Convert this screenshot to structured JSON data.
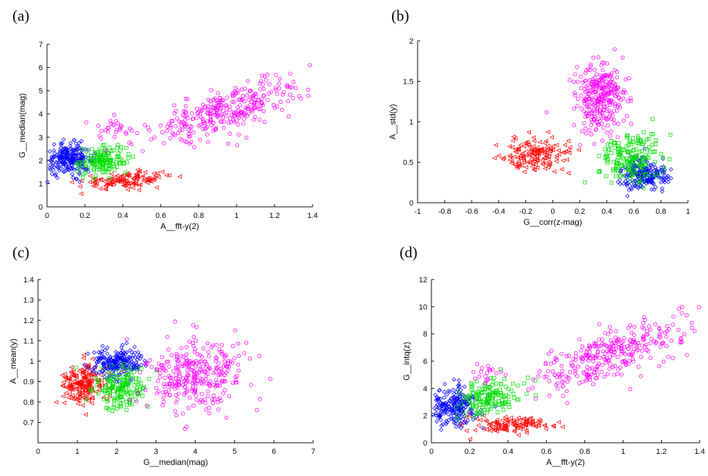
{
  "colors": {
    "red": "#ff0000",
    "blue": "#0000ff",
    "green": "#00dd00",
    "magenta": "#ff00ff"
  },
  "chart_data": [
    {
      "type": "scatter",
      "panel_label": "(a)",
      "xlabel": "A__fft-y(2)",
      "ylabel": "G__median(mag)",
      "xlim": [
        0,
        1.4
      ],
      "ylim": [
        0,
        7
      ],
      "xticks": [
        0,
        0.2,
        0.4,
        0.6,
        0.8,
        1,
        1.2,
        1.4
      ],
      "yticks": [
        0,
        1,
        2,
        3,
        4,
        5,
        6,
        7
      ],
      "xtick_labels": [
        "0",
        "0.2",
        "0.4",
        "0.6",
        "0.8",
        "1",
        "1.2",
        "1.4"
      ],
      "ytick_labels": [
        "0",
        "1",
        "2",
        "3",
        "4",
        "5",
        "6",
        "7"
      ],
      "series": [
        {
          "name": "red",
          "marker": "triangle-left",
          "color": "red",
          "clusters": [
            {
              "cx": 0.42,
              "cy": 1.15,
              "sx": 0.12,
              "sy": 0.18,
              "n": 120,
              "rho": 0.3
            }
          ]
        },
        {
          "name": "blue",
          "marker": "diamond",
          "color": "blue",
          "clusters": [
            {
              "cx": 0.12,
              "cy": 2.05,
              "sx": 0.06,
              "sy": 0.32,
              "n": 220,
              "rho": 0.1
            }
          ]
        },
        {
          "name": "green",
          "marker": "square",
          "color": "green",
          "clusters": [
            {
              "cx": 0.3,
              "cy": 2.0,
              "sx": 0.06,
              "sy": 0.3,
              "n": 140,
              "rho": 0.1
            }
          ]
        },
        {
          "name": "magenta",
          "marker": "circle",
          "color": "magenta",
          "clusters": [
            {
              "cx": 0.95,
              "cy": 4.2,
              "sx": 0.2,
              "sy": 0.7,
              "n": 320,
              "rho": 0.7
            },
            {
              "cx": 0.32,
              "cy": 3.3,
              "sx": 0.06,
              "sy": 0.25,
              "n": 25,
              "rho": 0
            }
          ]
        }
      ]
    },
    {
      "type": "scatter",
      "panel_label": "(b)",
      "xlabel": "G__corr(z-mag)",
      "ylabel": "A__std(y)",
      "xlim": [
        -1,
        1
      ],
      "ylim": [
        0,
        2
      ],
      "xticks": [
        -1,
        -0.8,
        -0.6,
        -0.4,
        -0.2,
        0,
        0.2,
        0.4,
        0.6,
        0.8,
        1
      ],
      "yticks": [
        0,
        0.5,
        1,
        1.5,
        2
      ],
      "xtick_labels": [
        "-1",
        "-0.8",
        "-0.6",
        "-0.4",
        "-0.2",
        "0",
        "0.2",
        "0.4",
        "0.6",
        "0.8",
        "1"
      ],
      "ytick_labels": [
        "0",
        "0.5",
        "1",
        "1.5",
        "2"
      ],
      "series": [
        {
          "name": "red",
          "marker": "triangle-left",
          "color": "red",
          "clusters": [
            {
              "cx": -0.12,
              "cy": 0.58,
              "sx": 0.13,
              "sy": 0.11,
              "n": 150,
              "rho": 0
            }
          ]
        },
        {
          "name": "blue",
          "marker": "diamond",
          "color": "blue",
          "clusters": [
            {
              "cx": 0.68,
              "cy": 0.35,
              "sx": 0.08,
              "sy": 0.1,
              "n": 220,
              "rho": 0
            }
          ]
        },
        {
          "name": "green",
          "marker": "square",
          "color": "green",
          "clusters": [
            {
              "cx": 0.58,
              "cy": 0.55,
              "sx": 0.12,
              "sy": 0.15,
              "n": 180,
              "rho": 0
            }
          ]
        },
        {
          "name": "magenta",
          "marker": "circle",
          "color": "magenta",
          "clusters": [
            {
              "cx": 0.35,
              "cy": 1.3,
              "sx": 0.09,
              "sy": 0.2,
              "n": 300,
              "rho": 0
            }
          ]
        }
      ]
    },
    {
      "type": "scatter",
      "panel_label": "(c)",
      "xlabel": "G__median(mag)",
      "ylabel": "A__mean(y)",
      "xlim": [
        0,
        7
      ],
      "ylim": [
        0.6,
        1.4
      ],
      "xticks": [
        0,
        1,
        2,
        3,
        4,
        5,
        6,
        7
      ],
      "yticks": [
        0.7,
        0.8,
        0.9,
        1.0,
        1.1,
        1.2,
        1.3,
        1.4
      ],
      "xtick_labels": [
        "0",
        "1",
        "2",
        "3",
        "4",
        "5",
        "6",
        "7"
      ],
      "ytick_labels": [
        "0.7",
        "0.8",
        "0.9",
        "1",
        "1.1",
        "1.2",
        "1.3",
        "1.4"
      ],
      "series": [
        {
          "name": "red",
          "marker": "triangle-left",
          "color": "red",
          "clusters": [
            {
              "cx": 1.1,
              "cy": 0.88,
              "sx": 0.25,
              "sy": 0.05,
              "n": 180,
              "rho": 0
            }
          ]
        },
        {
          "name": "blue",
          "marker": "diamond",
          "color": "blue",
          "clusters": [
            {
              "cx": 2.0,
              "cy": 0.99,
              "sx": 0.35,
              "sy": 0.04,
              "n": 220,
              "rho": 0
            }
          ]
        },
        {
          "name": "green",
          "marker": "square",
          "color": "green",
          "clusters": [
            {
              "cx": 2.1,
              "cy": 0.88,
              "sx": 0.35,
              "sy": 0.05,
              "n": 160,
              "rho": 0
            }
          ]
        },
        {
          "name": "magenta",
          "marker": "circle",
          "color": "magenta",
          "clusters": [
            {
              "cx": 4.0,
              "cy": 0.93,
              "sx": 0.7,
              "sy": 0.09,
              "n": 320,
              "rho": 0
            }
          ]
        }
      ]
    },
    {
      "type": "scatter",
      "panel_label": "(d)",
      "xlabel": "A__fft-y(2)",
      "ylabel": "G__intq(z)",
      "xlim": [
        0,
        1.4
      ],
      "ylim": [
        0,
        12
      ],
      "xticks": [
        0,
        0.2,
        0.4,
        0.6,
        0.8,
        1,
        1.2,
        1.4
      ],
      "yticks": [
        0,
        2,
        4,
        6,
        8,
        10,
        12
      ],
      "xtick_labels": [
        "0",
        "0.2",
        "0.4",
        "0.6",
        "0.8",
        "1",
        "1.2",
        "1.4"
      ],
      "ytick_labels": [
        "0",
        "2",
        "4",
        "6",
        "8",
        "10",
        "12"
      ],
      "series": [
        {
          "name": "red",
          "marker": "triangle-left",
          "color": "red",
          "clusters": [
            {
              "cx": 0.42,
              "cy": 1.3,
              "sx": 0.12,
              "sy": 0.3,
              "n": 120,
              "rho": 0.2
            }
          ]
        },
        {
          "name": "blue",
          "marker": "diamond",
          "color": "blue",
          "clusters": [
            {
              "cx": 0.12,
              "cy": 2.7,
              "sx": 0.06,
              "sy": 0.75,
              "n": 220,
              "rho": 0.1
            }
          ]
        },
        {
          "name": "green",
          "marker": "square",
          "color": "green",
          "clusters": [
            {
              "cx": 0.3,
              "cy": 3.3,
              "sx": 0.08,
              "sy": 0.7,
              "n": 150,
              "rho": 0.3
            }
          ]
        },
        {
          "name": "magenta",
          "marker": "circle",
          "color": "magenta",
          "clusters": [
            {
              "cx": 0.95,
              "cy": 6.5,
              "sx": 0.2,
              "sy": 1.3,
              "n": 320,
              "rho": 0.7
            },
            {
              "cx": 0.3,
              "cy": 5.0,
              "sx": 0.05,
              "sy": 0.5,
              "n": 20,
              "rho": 0
            }
          ]
        }
      ]
    }
  ]
}
